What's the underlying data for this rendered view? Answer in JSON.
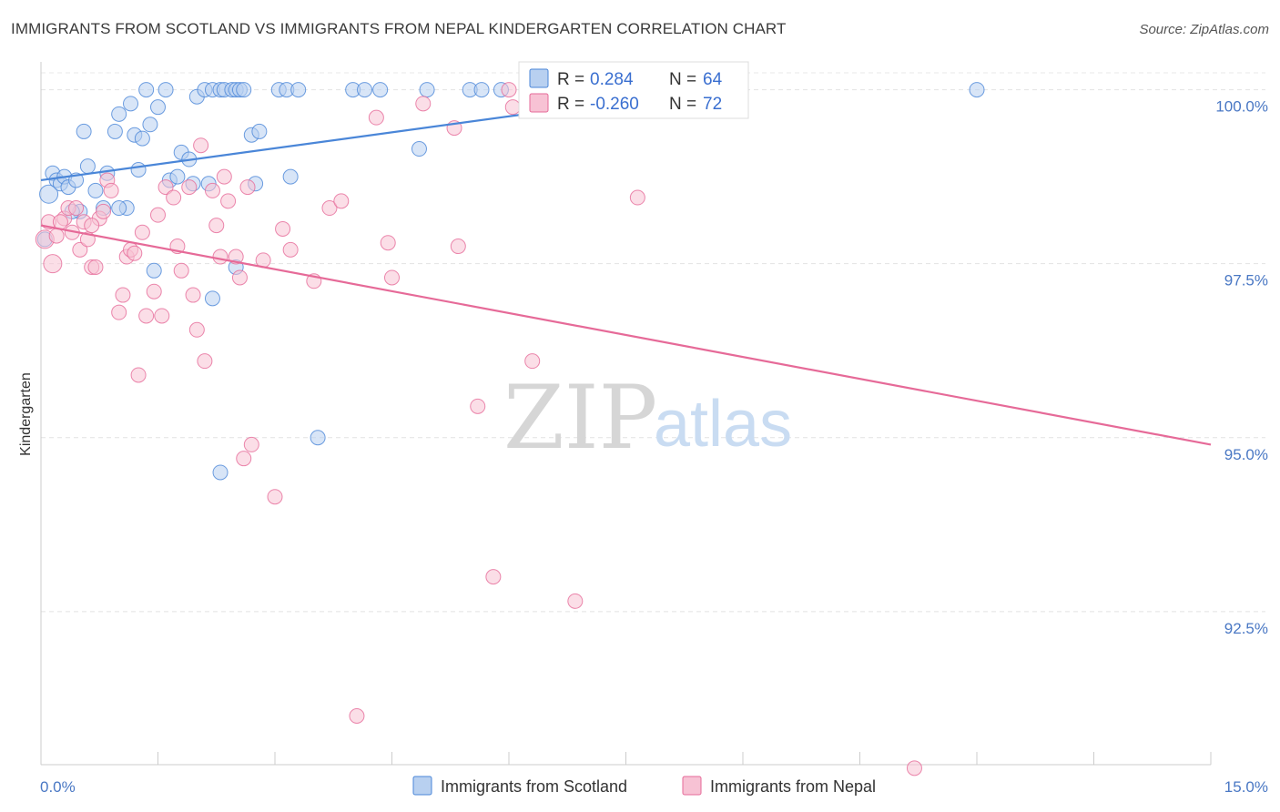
{
  "title": "IMMIGRANTS FROM SCOTLAND VS IMMIGRANTS FROM NEPAL KINDERGARTEN CORRELATION CHART",
  "source": "Source: ZipAtlas.com",
  "watermark": {
    "zip": "ZIP",
    "atlas": "atlas"
  },
  "colors": {
    "scotland": "#4a86d8",
    "nepal": "#e66a98",
    "scotland_fill": "#b8d0f0",
    "nepal_fill": "#f7c2d4"
  },
  "legend": {
    "rows": [
      {
        "r_label": "R =",
        "r_value": " 0.284",
        "n_label": "N =",
        "n_value": "64"
      },
      {
        "r_label": "R =",
        "r_value": "-0.260",
        "n_label": "N =",
        "n_value": "72"
      }
    ]
  },
  "chart_data": {
    "type": "scatter",
    "ylabel": "Kindergarten",
    "xlim": [
      0,
      15
    ],
    "ylim": [
      90.3,
      100.4
    ],
    "x_tick_labels": [
      "0.0%",
      "15.0%"
    ],
    "y_ticks": [
      {
        "value": 100.0,
        "label": "100.0%"
      },
      {
        "value": 97.5,
        "label": "97.5%"
      },
      {
        "value": 95.0,
        "label": "95.0%"
      },
      {
        "value": 92.5,
        "label": "92.5%"
      }
    ],
    "series": [
      {
        "name": "Immigrants from Scotland",
        "trend": {
          "x": [
            0.0,
            8.5
          ],
          "y": [
            98.7,
            100.0
          ]
        },
        "points": [
          [
            0.1,
            98.5
          ],
          [
            0.15,
            98.8
          ],
          [
            0.2,
            98.7
          ],
          [
            0.25,
            98.65
          ],
          [
            0.3,
            98.75
          ],
          [
            0.35,
            98.6
          ],
          [
            0.45,
            98.7
          ],
          [
            0.5,
            98.25
          ],
          [
            0.55,
            99.4
          ],
          [
            0.6,
            98.9
          ],
          [
            0.7,
            98.55
          ],
          [
            0.8,
            98.3
          ],
          [
            0.85,
            98.8
          ],
          [
            0.95,
            99.4
          ],
          [
            1.0,
            99.65
          ],
          [
            1.1,
            98.3
          ],
          [
            1.15,
            99.8
          ],
          [
            1.2,
            99.35
          ],
          [
            1.25,
            98.85
          ],
          [
            1.3,
            99.3
          ],
          [
            1.35,
            100.0
          ],
          [
            1.4,
            99.5
          ],
          [
            1.45,
            97.4
          ],
          [
            1.5,
            99.75
          ],
          [
            1.6,
            100.0
          ],
          [
            1.65,
            98.7
          ],
          [
            1.75,
            98.75
          ],
          [
            1.8,
            99.1
          ],
          [
            1.9,
            99.0
          ],
          [
            1.95,
            98.65
          ],
          [
            2.0,
            99.9
          ],
          [
            2.1,
            100.0
          ],
          [
            2.15,
            98.65
          ],
          [
            2.2,
            100.0
          ],
          [
            2.3,
            100.0
          ],
          [
            2.2,
            97.0
          ],
          [
            2.3,
            94.5
          ],
          [
            2.35,
            100.0
          ],
          [
            2.45,
            100.0
          ],
          [
            2.5,
            97.45
          ],
          [
            2.5,
            100.0
          ],
          [
            2.55,
            100.0
          ],
          [
            2.6,
            100.0
          ],
          [
            2.7,
            99.35
          ],
          [
            2.75,
            98.65
          ],
          [
            2.8,
            99.4
          ],
          [
            3.05,
            100.0
          ],
          [
            3.15,
            100.0
          ],
          [
            3.2,
            98.75
          ],
          [
            3.3,
            100.0
          ],
          [
            3.55,
            95.0
          ],
          [
            4.0,
            100.0
          ],
          [
            4.15,
            100.0
          ],
          [
            4.35,
            100.0
          ],
          [
            4.95,
            100.0
          ],
          [
            4.85,
            99.15
          ],
          [
            5.5,
            100.0
          ],
          [
            5.65,
            100.0
          ],
          [
            5.9,
            100.0
          ],
          [
            8.5,
            100.0
          ],
          [
            12.0,
            100.0
          ],
          [
            0.05,
            97.85
          ],
          [
            0.4,
            98.25
          ],
          [
            1.0,
            98.3
          ]
        ]
      },
      {
        "name": "Immigrants from Nepal",
        "trend": {
          "x": [
            0.0,
            15.0
          ],
          "y": [
            98.05,
            94.9
          ]
        },
        "points": [
          [
            0.05,
            97.85
          ],
          [
            0.1,
            98.1
          ],
          [
            0.15,
            97.5
          ],
          [
            0.2,
            97.9
          ],
          [
            0.3,
            98.15
          ],
          [
            0.35,
            98.3
          ],
          [
            0.4,
            97.95
          ],
          [
            0.45,
            98.3
          ],
          [
            0.5,
            97.7
          ],
          [
            0.55,
            98.1
          ],
          [
            0.6,
            97.85
          ],
          [
            0.65,
            97.45
          ],
          [
            0.7,
            97.45
          ],
          [
            0.75,
            98.15
          ],
          [
            0.8,
            98.25
          ],
          [
            0.85,
            98.7
          ],
          [
            0.9,
            98.55
          ],
          [
            1.0,
            96.8
          ],
          [
            1.05,
            97.05
          ],
          [
            1.1,
            97.6
          ],
          [
            1.15,
            97.7
          ],
          [
            1.2,
            97.65
          ],
          [
            1.25,
            95.9
          ],
          [
            1.3,
            97.95
          ],
          [
            1.35,
            96.75
          ],
          [
            1.45,
            97.1
          ],
          [
            1.5,
            98.2
          ],
          [
            1.55,
            96.75
          ],
          [
            1.6,
            98.6
          ],
          [
            1.7,
            98.45
          ],
          [
            1.75,
            97.75
          ],
          [
            1.8,
            97.4
          ],
          [
            1.9,
            98.6
          ],
          [
            1.95,
            97.05
          ],
          [
            2.0,
            96.55
          ],
          [
            2.05,
            99.2
          ],
          [
            2.1,
            96.1
          ],
          [
            2.2,
            98.55
          ],
          [
            2.25,
            98.05
          ],
          [
            2.3,
            97.6
          ],
          [
            2.35,
            98.75
          ],
          [
            2.4,
            98.4
          ],
          [
            2.5,
            97.6
          ],
          [
            2.55,
            97.3
          ],
          [
            2.6,
            94.7
          ],
          [
            2.65,
            98.6
          ],
          [
            2.7,
            94.9
          ],
          [
            2.85,
            97.55
          ],
          [
            3.0,
            94.15
          ],
          [
            3.1,
            98.0
          ],
          [
            3.2,
            97.7
          ],
          [
            3.5,
            97.25
          ],
          [
            3.7,
            98.3
          ],
          [
            3.85,
            98.4
          ],
          [
            4.05,
            91.0
          ],
          [
            4.3,
            99.6
          ],
          [
            4.45,
            97.8
          ],
          [
            4.5,
            97.3
          ],
          [
            4.9,
            99.8
          ],
          [
            5.3,
            99.45
          ],
          [
            5.35,
            97.75
          ],
          [
            5.6,
            95.45
          ],
          [
            5.8,
            93.0
          ],
          [
            6.0,
            100.0
          ],
          [
            6.05,
            99.75
          ],
          [
            6.3,
            96.1
          ],
          [
            6.7,
            100.0
          ],
          [
            6.85,
            92.65
          ],
          [
            7.65,
            98.45
          ],
          [
            11.2,
            90.25
          ],
          [
            0.25,
            98.1
          ],
          [
            0.65,
            98.05
          ]
        ]
      }
    ],
    "legend_position": "top-center"
  }
}
